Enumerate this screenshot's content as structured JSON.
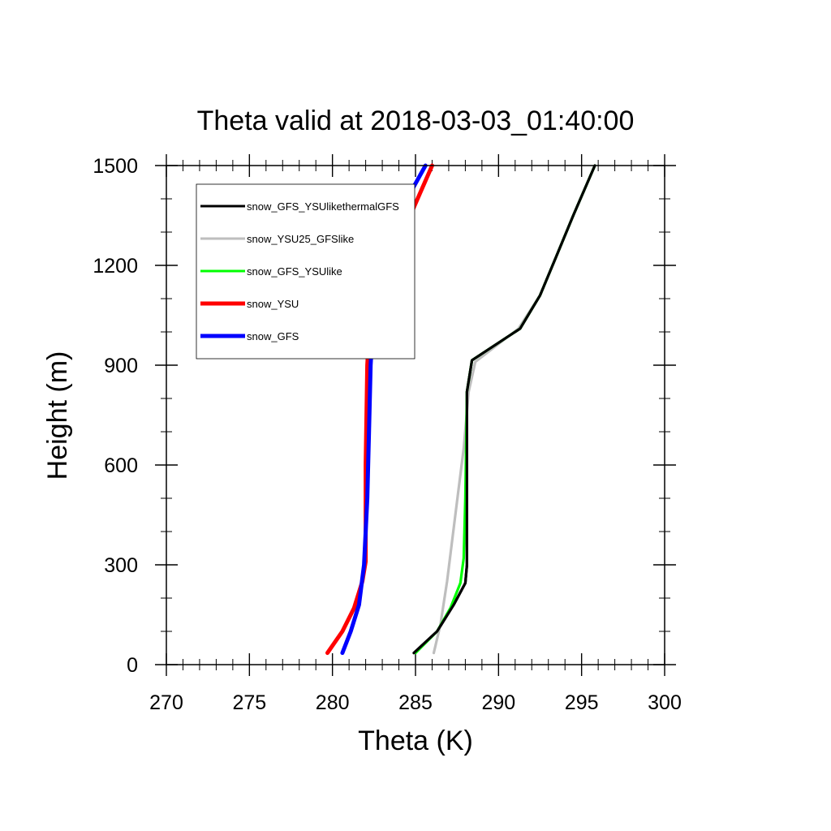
{
  "chart_data": {
    "type": "line",
    "title": "Theta valid at 2018-03-03_01:40:00",
    "xlabel": "Theta (K)",
    "ylabel": "Height (m)",
    "xlim": [
      270,
      300
    ],
    "ylim": [
      0,
      1500
    ],
    "xticks": [
      270,
      275,
      280,
      285,
      290,
      295,
      300
    ],
    "yticks": [
      0,
      300,
      600,
      900,
      1200,
      1500
    ],
    "xminor_step": 1,
    "yminor_step": 100,
    "grid": false,
    "legend_position": "top-left",
    "series": [
      {
        "name": "snow_GFS_YSUlikethermalGFS",
        "color": "#000000",
        "points": [
          [
            284.9,
            35
          ],
          [
            286.3,
            100
          ],
          [
            287.3,
            180
          ],
          [
            288.0,
            245
          ],
          [
            288.1,
            300
          ],
          [
            288.1,
            500
          ],
          [
            288.1,
            820
          ],
          [
            288.4,
            915
          ],
          [
            291.3,
            1010
          ],
          [
            292.5,
            1110
          ],
          [
            293.5,
            1230
          ],
          [
            294.5,
            1350
          ],
          [
            295.8,
            1500
          ]
        ]
      },
      {
        "name": "snow_YSU25_GFSlike",
        "color": "#bebebe",
        "points": [
          [
            286.1,
            35
          ],
          [
            286.5,
            120
          ],
          [
            286.9,
            250
          ],
          [
            287.4,
            450
          ],
          [
            287.9,
            650
          ],
          [
            288.2,
            820
          ],
          [
            288.6,
            910
          ],
          [
            291.2,
            1010
          ],
          [
            292.5,
            1110
          ],
          [
            293.5,
            1230
          ],
          [
            294.5,
            1350
          ],
          [
            295.8,
            1500
          ]
        ]
      },
      {
        "name": "snow_GFS_YSUlike",
        "color": "#00ff00",
        "points": [
          [
            285.0,
            35
          ],
          [
            286.3,
            100
          ],
          [
            287.1,
            170
          ],
          [
            287.7,
            245
          ],
          [
            287.9,
            320
          ],
          [
            288.0,
            500
          ],
          [
            288.1,
            820
          ],
          [
            288.4,
            915
          ],
          [
            291.3,
            1010
          ],
          [
            292.5,
            1110
          ],
          [
            293.5,
            1230
          ],
          [
            294.5,
            1350
          ],
          [
            295.8,
            1500
          ]
        ]
      },
      {
        "name": "snow_YSU",
        "color": "#ff0000",
        "points": [
          [
            279.7,
            35
          ],
          [
            280.6,
            100
          ],
          [
            281.3,
            170
          ],
          [
            281.8,
            250
          ],
          [
            282.0,
            310
          ],
          [
            282.0,
            600
          ],
          [
            282.1,
            900
          ],
          [
            282.2,
            990
          ],
          [
            282.8,
            1100
          ],
          [
            283.4,
            1190
          ],
          [
            284.6,
            1340
          ],
          [
            286.0,
            1500
          ]
        ]
      },
      {
        "name": "snow_GFS",
        "color": "#0000ff",
        "points": [
          [
            280.6,
            35
          ],
          [
            281.1,
            100
          ],
          [
            281.6,
            180
          ],
          [
            281.9,
            300
          ],
          [
            282.1,
            500
          ],
          [
            282.2,
            700
          ],
          [
            282.3,
            900
          ],
          [
            282.5,
            1080
          ],
          [
            282.9,
            1190
          ],
          [
            283.4,
            1300
          ],
          [
            284.6,
            1410
          ],
          [
            285.6,
            1500
          ]
        ]
      }
    ]
  }
}
